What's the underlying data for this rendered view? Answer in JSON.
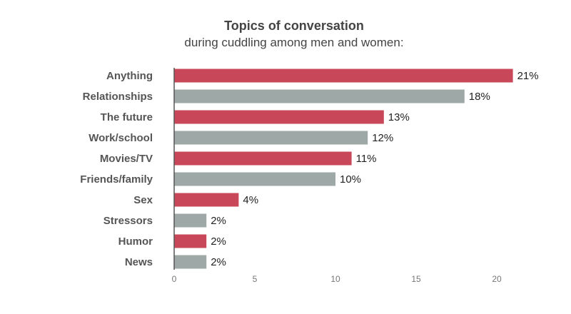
{
  "chart_data": {
    "type": "bar",
    "orientation": "horizontal",
    "title": "Topics of conversation",
    "subtitle": "during cuddling among men and women:",
    "categories": [
      "Anything",
      "Relationships",
      "The future",
      "Work/school",
      "Movies/TV",
      "Friends/family",
      "Sex",
      "Stressors",
      "Humor",
      "News"
    ],
    "values": [
      21,
      18,
      13,
      12,
      11,
      10,
      4,
      2,
      2,
      2
    ],
    "value_labels": [
      "21%",
      "18%",
      "13%",
      "12%",
      "11%",
      "10%",
      "4%",
      "2%",
      "2%",
      "2%"
    ],
    "xlim": [
      0,
      21
    ],
    "xticks": [
      0,
      5,
      10,
      15,
      20
    ],
    "grid": false,
    "bar_colors": [
      "#c8485a",
      "#9ea8a6",
      "#c8485a",
      "#9ea8a6",
      "#c8485a",
      "#9ea8a6",
      "#c8485a",
      "#9ea8a6",
      "#c8485a",
      "#9ea8a6"
    ]
  }
}
